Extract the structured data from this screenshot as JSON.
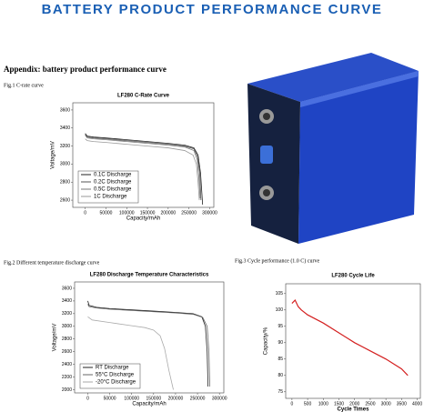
{
  "header": {
    "title": "BATTERY PRODUCT PERFORMANCE CURVE"
  },
  "appendix": "Appendix: battery product performance curve",
  "captions": [
    "Fig.1 C-rate curve",
    "Fig.2 Different temperature discharge curve",
    "Fig.3 Cycle performance (1.0 C) curve"
  ],
  "chart_data": [
    {
      "type": "line",
      "title": "LF280 C-Rate Curve",
      "x_label": "Capacity/mAh",
      "y_label": "Voltage/mV",
      "xlim": [
        -30000,
        310000
      ],
      "xticks": [
        0,
        50000,
        100000,
        150000,
        200000,
        250000,
        300000
      ],
      "ylim": [
        2520,
        3680
      ],
      "yticks": [
        2600,
        2800,
        3000,
        3200,
        3400,
        3600
      ],
      "legend": "lower left",
      "grid": false,
      "series": [
        {
          "name": "0.1C Discharge",
          "color": "#222222",
          "x": [
            0,
            5000,
            20000,
            50000,
            100000,
            150000,
            200000,
            240000,
            262000,
            272000,
            278000,
            283000
          ],
          "values": [
            3340,
            3310,
            3300,
            3290,
            3270,
            3250,
            3230,
            3210,
            3180,
            3100,
            2900,
            2550
          ]
        },
        {
          "name": "0.2C Discharge",
          "color": "#555555",
          "x": [
            0,
            5000,
            20000,
            50000,
            100000,
            150000,
            200000,
            240000,
            262000,
            271000,
            276000,
            279000
          ],
          "values": [
            3330,
            3300,
            3290,
            3280,
            3260,
            3240,
            3220,
            3200,
            3170,
            3080,
            2900,
            2600
          ]
        },
        {
          "name": "0.5C Discharge",
          "color": "#777777",
          "x": [
            0,
            5000,
            20000,
            50000,
            100000,
            150000,
            200000,
            240000,
            262000,
            270000,
            274000,
            277000
          ],
          "values": [
            3320,
            3290,
            3280,
            3270,
            3250,
            3230,
            3210,
            3190,
            3150,
            3050,
            2850,
            2620
          ]
        },
        {
          "name": "1C Discharge",
          "color": "#999999",
          "x": [
            0,
            5000,
            20000,
            50000,
            100000,
            150000,
            200000,
            240000,
            260000,
            268000,
            272000,
            275000
          ],
          "values": [
            3280,
            3260,
            3250,
            3240,
            3220,
            3200,
            3180,
            3150,
            3100,
            3000,
            2800,
            2600
          ]
        }
      ]
    },
    {
      "type": "line",
      "title": "LF280 Discharge Temperature Characteristics",
      "x_label": "Capacity/mAh",
      "y_label": "Voltage/mV",
      "xlim": [
        -30000,
        310000
      ],
      "xticks": [
        0,
        50000,
        100000,
        150000,
        200000,
        250000,
        300000
      ],
      "ylim": [
        1950,
        3700
      ],
      "yticks": [
        2000,
        2200,
        2400,
        2600,
        2800,
        3000,
        3200,
        3400,
        3600
      ],
      "legend": "lower left",
      "grid": false,
      "series": [
        {
          "name": "RT  Discharge",
          "color": "#222222",
          "x": [
            0,
            3000,
            20000,
            50000,
            100000,
            150000,
            200000,
            240000,
            260000,
            268000,
            272000,
            274000
          ],
          "values": [
            3400,
            3330,
            3300,
            3280,
            3260,
            3240,
            3220,
            3200,
            3150,
            3000,
            2600,
            2050
          ]
        },
        {
          "name": "55°C Discharge",
          "color": "#666666",
          "x": [
            0,
            3000,
            20000,
            50000,
            100000,
            150000,
            200000,
            240000,
            262000,
            272000,
            276000,
            278000
          ],
          "values": [
            3350,
            3310,
            3290,
            3270,
            3250,
            3230,
            3210,
            3190,
            3140,
            3000,
            2600,
            2050
          ]
        },
        {
          "name": "-20°C Discharge",
          "color": "#aaaaaa",
          "x": [
            0,
            10000,
            50000,
            100000,
            130000,
            150000,
            165000,
            175000,
            185000,
            195000
          ],
          "values": [
            3150,
            3100,
            3060,
            3010,
            2980,
            2940,
            2850,
            2650,
            2300,
            2000
          ]
        }
      ]
    },
    {
      "type": "line",
      "title": "LF280 Cycle Life",
      "x_label": "Cycle Times",
      "y_label": "Capacity/%",
      "xlim": [
        -200,
        4100
      ],
      "xticks": [
        0,
        500,
        1000,
        1500,
        2000,
        2500,
        3000,
        3500,
        4000
      ],
      "ylim": [
        73,
        108
      ],
      "yticks": [
        75,
        80,
        85,
        90,
        95,
        100,
        105
      ],
      "grid": false,
      "series": [
        {
          "name": "Capacity",
          "color": "#d42020",
          "x": [
            0,
            100,
            200,
            300,
            500,
            1000,
            1500,
            2000,
            2500,
            3000,
            3500,
            3700
          ],
          "values": [
            102,
            103,
            101,
            100,
            98.5,
            96,
            93,
            90,
            87.5,
            85,
            82,
            80
          ]
        }
      ]
    }
  ]
}
